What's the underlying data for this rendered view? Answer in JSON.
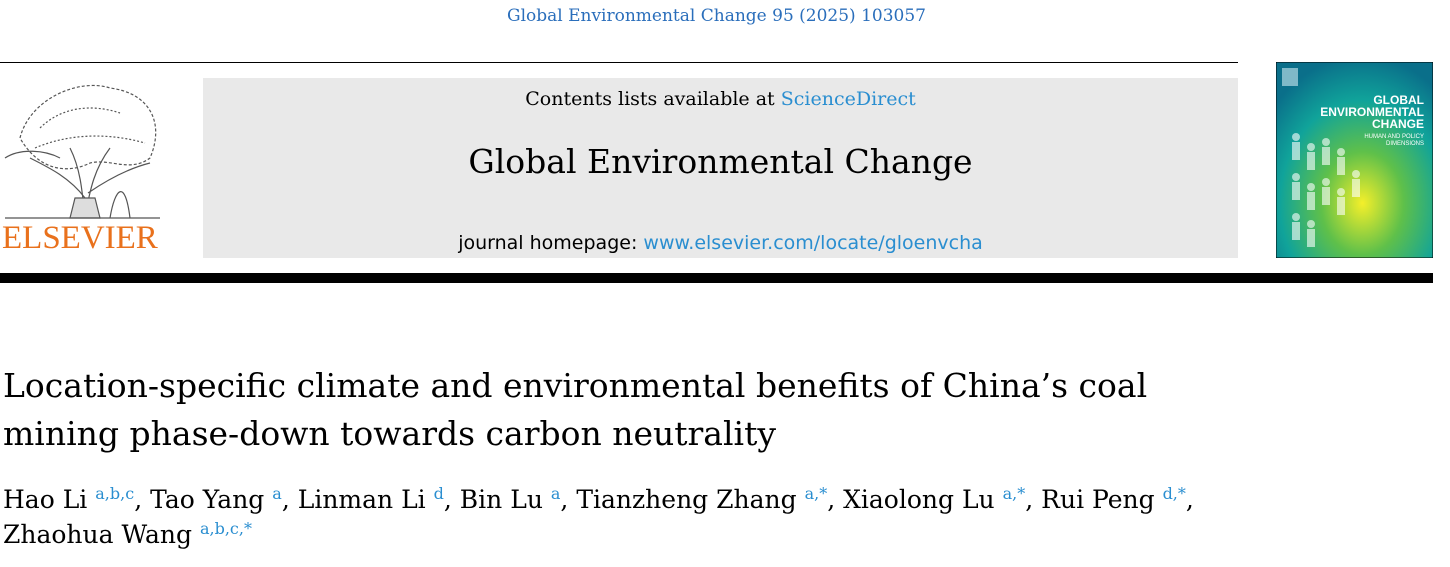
{
  "header": {
    "citation": "Global Environmental Change 95 (2025) 103057"
  },
  "publisher": {
    "name": "ELSEVIER"
  },
  "banner": {
    "contents_prefix": "Contents lists available at",
    "contents_link": "ScienceDirect",
    "journal": "Global Environmental Change",
    "homepage_prefix": "journal homepage:",
    "homepage_link": "www.elsevier.com/locate/gloenvcha"
  },
  "cover": {
    "title_lines": [
      "GLOBAL",
      "ENVIRONMENTAL",
      "CHANGE"
    ],
    "subtitle_lines": [
      "HUMAN AND POLICY",
      "DIMENSIONS"
    ]
  },
  "article": {
    "title": "Location-specific climate and environmental benefits of China’s coal mining phase-down towards carbon neutrality",
    "authors": [
      {
        "name": "Hao Li",
        "affil": "a,b,c",
        "sep": ","
      },
      {
        "name": "Tao Yang",
        "affil": "a",
        "sep": ","
      },
      {
        "name": "Linman Li",
        "affil": "d",
        "sep": ","
      },
      {
        "name": "Bin Lu",
        "affil": "a",
        "sep": ","
      },
      {
        "name": "Tianzheng Zhang",
        "affil": "a,*",
        "sep": ","
      },
      {
        "name": "Xiaolong Lu",
        "affil": "a,*",
        "sep": ","
      },
      {
        "name": "Rui Peng",
        "affil": "d,*",
        "sep": ","
      },
      {
        "name": "Zhaohua Wang",
        "affil": "a,b,c,*"
      }
    ]
  }
}
